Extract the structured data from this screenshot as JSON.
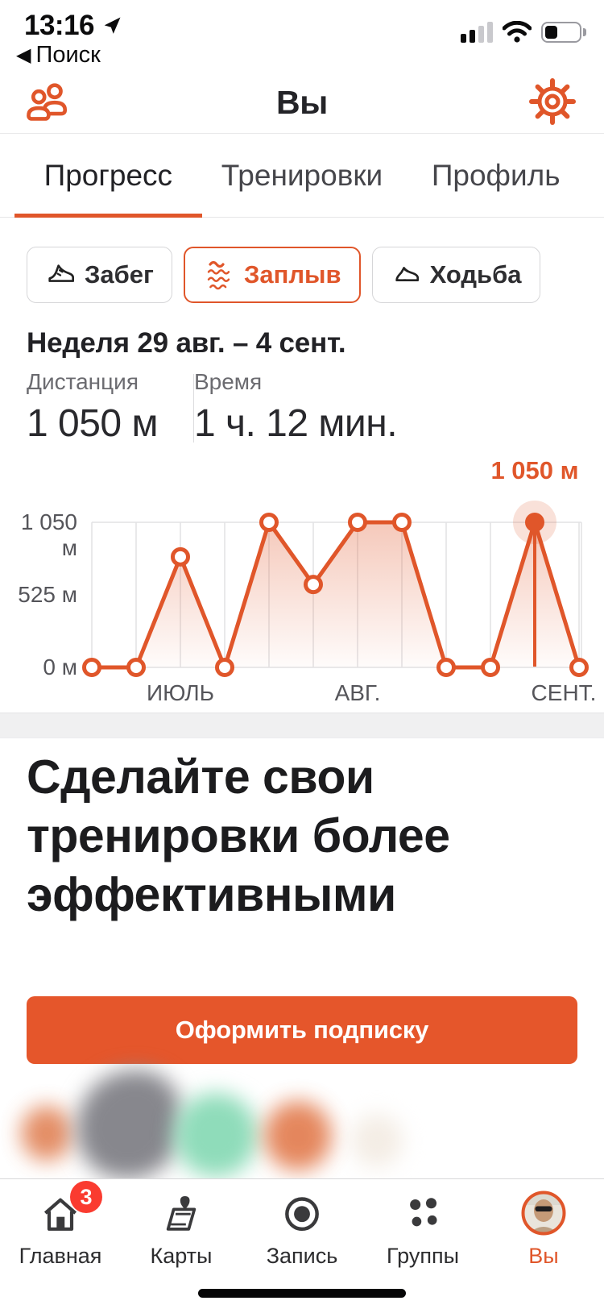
{
  "status_bar": {
    "time": "13:16",
    "back_label": "Поиск"
  },
  "header": {
    "title": "Вы"
  },
  "tabs": [
    {
      "label": "Прогресс",
      "active": true
    },
    {
      "label": "Тренировки",
      "active": false
    },
    {
      "label": "Профиль",
      "active": false
    }
  ],
  "sport_filters": [
    {
      "label": "Забег",
      "icon": "running-shoe-icon",
      "active": false
    },
    {
      "label": "Заплыв",
      "icon": "swim-waves-icon",
      "active": true
    },
    {
      "label": "Ходьба",
      "icon": "walking-shoe-icon",
      "active": false
    }
  ],
  "week": {
    "title": "Неделя 29 авг. – 4 сент."
  },
  "stats": [
    {
      "label": "Дистанция",
      "value": "1 050 м"
    },
    {
      "label": "Время",
      "value": "1 ч. 12 мин."
    }
  ],
  "chart_data": {
    "type": "line",
    "unit": "м",
    "values": [
      0,
      0,
      800,
      0,
      1050,
      600,
      1050,
      1050,
      0,
      0,
      1050,
      0
    ],
    "ylim": [
      0,
      1050
    ],
    "y_ticks": [
      {
        "value": 1050,
        "label": "1 050 м"
      },
      {
        "value": 525,
        "label": "525 м"
      },
      {
        "value": 0,
        "label": "0 м"
      }
    ],
    "x_ticks": [
      {
        "index": 2,
        "label": "ИЮЛЬ"
      },
      {
        "index": 6,
        "label": "АВГ."
      },
      {
        "index": 11,
        "label": "СЕНТ."
      }
    ],
    "selected_index": 10,
    "selected_label": "1 050 м",
    "grid": true,
    "legend": false
  },
  "promo": {
    "heading": "Сделайте свои тренировки более эффективными",
    "cta": "Оформить подписку"
  },
  "tab_bar": [
    {
      "label": "Главная",
      "icon": "home-icon",
      "badge": "3",
      "active": false
    },
    {
      "label": "Карты",
      "icon": "maps-icon",
      "active": false
    },
    {
      "label": "Запись",
      "icon": "record-icon",
      "active": false
    },
    {
      "label": "Группы",
      "icon": "groups-icon",
      "active": false
    },
    {
      "label": "Вы",
      "icon": "profile-avatar",
      "active": true
    }
  ],
  "colors": {
    "accent": "#e0562a",
    "cta_background": "#e5562b",
    "badge_red": "#fa3b30",
    "chart_fill_top": "rgba(224,86,42,0.32)",
    "chart_fill_bottom": "rgba(224,86,42,0.02)",
    "selected_halo": "rgba(224,86,42,0.18)",
    "gridline": "#e2e2e4",
    "blob_orange": "#df7a4b",
    "blob_gray": "#87878d",
    "blob_green": "#8fdcba"
  }
}
